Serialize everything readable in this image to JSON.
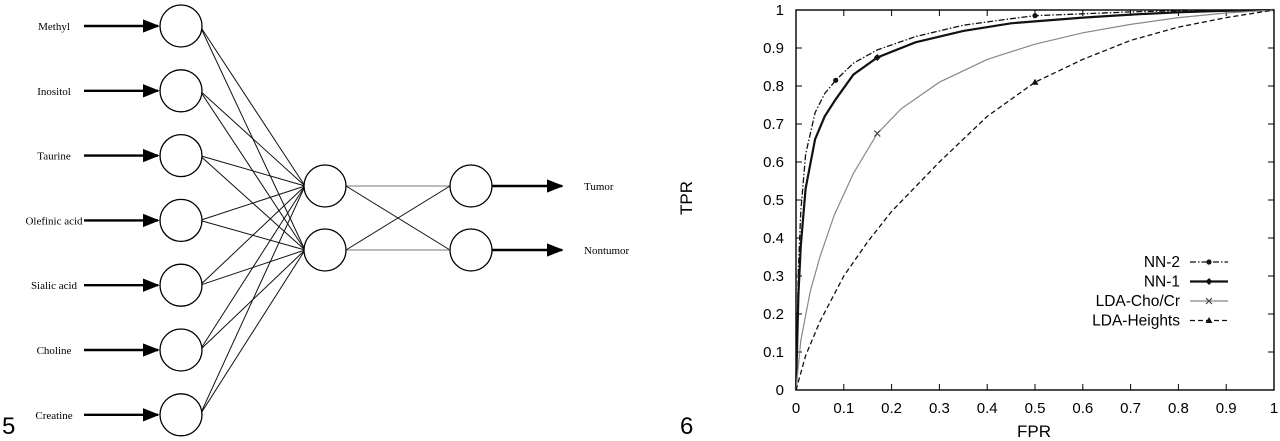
{
  "figure_numbers": [
    "5",
    "6"
  ],
  "network": {
    "inputs": [
      "Methyl",
      "Inositol",
      "Taurine",
      "Olefinic acid",
      "Sialic acid",
      "Choline",
      "Creatine"
    ],
    "outputs": [
      "Tumor",
      "Nontumor"
    ],
    "hidden_count": 2
  },
  "chart_data": {
    "type": "line",
    "xlabel": "FPR",
    "ylabel": "TPR",
    "xlim": [
      0,
      1
    ],
    "ylim": [
      0,
      1
    ],
    "xticks": [
      "0",
      "0.1",
      "0.2",
      "0.3",
      "0.4",
      "0.5",
      "0.6",
      "0.7",
      "0.8",
      "0.9",
      "1"
    ],
    "yticks": [
      "0",
      "0.1",
      "0.2",
      "0.3",
      "0.4",
      "0.5",
      "0.6",
      "0.7",
      "0.8",
      "0.9",
      "1"
    ],
    "legend_position": "bottom-right",
    "series": [
      {
        "name": "NN-2",
        "style": "dash-dot",
        "x": [
          0,
          0.005,
          0.01,
          0.02,
          0.04,
          0.06,
          0.083,
          0.12,
          0.17,
          0.25,
          0.35,
          0.45,
          0.5,
          0.6,
          0.7,
          0.8,
          0.9,
          1
        ],
        "y": [
          0,
          0.32,
          0.47,
          0.62,
          0.73,
          0.78,
          0.815,
          0.86,
          0.895,
          0.93,
          0.96,
          0.977,
          0.985,
          0.99,
          0.995,
          0.998,
          1,
          1
        ],
        "markers_x": [
          0.083,
          0.5
        ]
      },
      {
        "name": "NN-1",
        "style": "solid",
        "x": [
          0,
          0.005,
          0.01,
          0.02,
          0.04,
          0.06,
          0.083,
          0.12,
          0.17,
          0.25,
          0.35,
          0.45,
          0.5,
          0.6,
          0.7,
          0.8,
          0.9,
          1
        ],
        "y": [
          0,
          0.25,
          0.38,
          0.53,
          0.66,
          0.72,
          0.765,
          0.83,
          0.875,
          0.915,
          0.945,
          0.965,
          0.97,
          0.98,
          0.988,
          0.994,
          0.998,
          1
        ],
        "markers_x": [
          0.17
        ]
      },
      {
        "name": "LDA-Cho/Cr",
        "style": "solid-thin",
        "x": [
          0,
          0.01,
          0.03,
          0.05,
          0.08,
          0.12,
          0.17,
          0.22,
          0.3,
          0.4,
          0.5,
          0.6,
          0.7,
          0.8,
          0.9,
          1
        ],
        "y": [
          0,
          0.13,
          0.26,
          0.35,
          0.46,
          0.57,
          0.675,
          0.74,
          0.81,
          0.87,
          0.91,
          0.94,
          0.962,
          0.98,
          0.992,
          1
        ],
        "markers_x": [
          0.17
        ]
      },
      {
        "name": "LDA-Heights",
        "style": "dashed",
        "x": [
          0,
          0.02,
          0.05,
          0.1,
          0.15,
          0.2,
          0.3,
          0.4,
          0.5,
          0.6,
          0.7,
          0.8,
          0.9,
          1
        ],
        "y": [
          0,
          0.09,
          0.18,
          0.3,
          0.39,
          0.47,
          0.6,
          0.72,
          0.81,
          0.87,
          0.92,
          0.955,
          0.98,
          1
        ],
        "markers_x": [
          0.5
        ]
      }
    ]
  }
}
